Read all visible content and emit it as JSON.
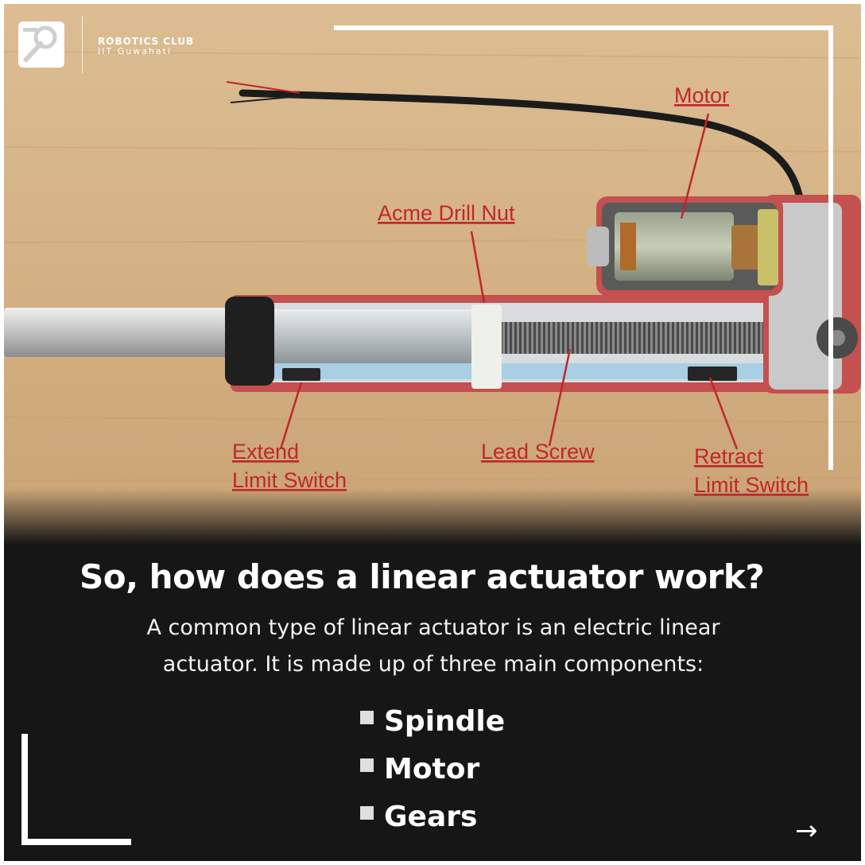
{
  "brand": {
    "name": "ROBOTICS CLUB",
    "sub": "IIT Guwahati"
  },
  "labels": {
    "motor": "Motor",
    "acme_nut": "Acme Drill Nut",
    "extend_1": "Extend",
    "extend_2": "Limit Switch",
    "lead_screw": "Lead Screw",
    "retract_1": "Retract",
    "retract_2": "Limit Switch"
  },
  "heading": "So, how does a linear actuator work?",
  "description": "A common type of linear actuator is an electric linear actuator. It is made up of three main components:",
  "components": [
    "Spindle",
    "Motor",
    "Gears"
  ],
  "next_arrow": "→",
  "colors": {
    "label_red": "#c0272d",
    "panel": "#161616",
    "wood": "#d9b98c"
  }
}
